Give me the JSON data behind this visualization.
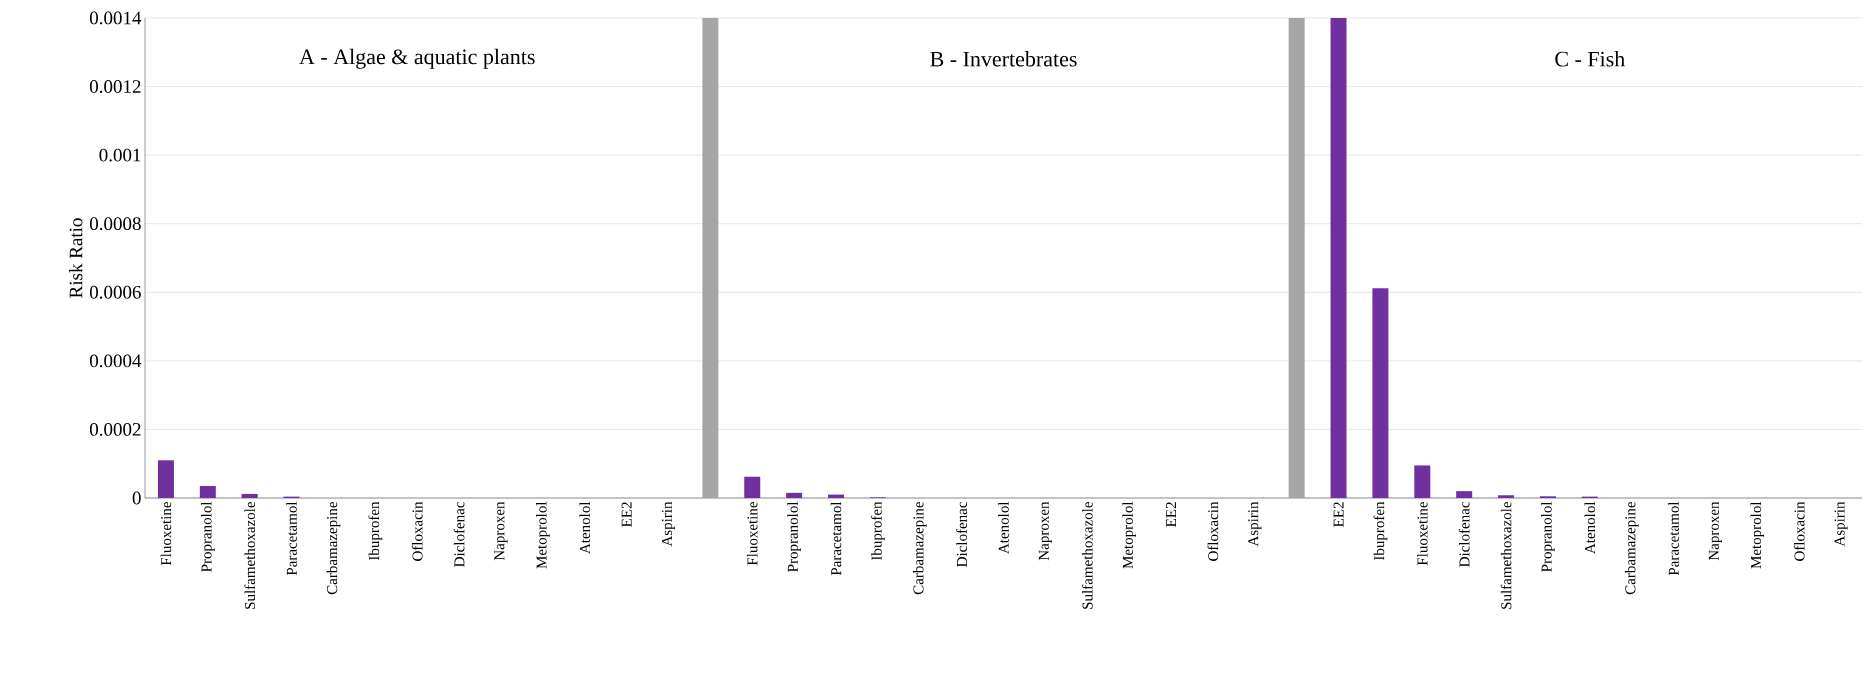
{
  "chart_data": {
    "type": "bar",
    "ylabel": "Risk Ratio",
    "categories": [
      "Fluoxetine",
      "Propranolol",
      "Sulfamethoxazole",
      "Paracetamol",
      "Carbamazepine",
      "Ibuprofen",
      "Ofloxacin",
      "Diclofenac",
      "Naproxen",
      "Metoprolol",
      "Atenolol",
      "EE2",
      "Aspirin",
      null,
      "Fluoxetine",
      "Propranolol",
      "Paracetamol",
      "Ibuprofen",
      "Carbamazepine",
      "Diclofenac",
      "Atenolol",
      "Naproxen",
      "Sulfamethoxazole",
      "Metoprolol",
      "EE2",
      "Ofloxacin",
      "Aspirin",
      null,
      "EE2",
      "Ibuprofen",
      "Fluoxetine",
      "Diclofenac",
      "Sulfamethoxazole",
      "Propranolol",
      "Atenolol",
      "Carbamazepine",
      "Paracetamol",
      "Naproxen",
      "Metoprolol",
      "Ofloxacin",
      "Aspirin"
    ],
    "series": [
      {
        "color": "#7030a0",
        "values": [
          0.00011,
          3.5e-05,
          1.2e-05,
          4e-06,
          0,
          0,
          0,
          0,
          0,
          0,
          0,
          0,
          0,
          null,
          6.2e-05,
          1.5e-05,
          1e-05,
          2e-06,
          0,
          0,
          0,
          0,
          0,
          0,
          0,
          0,
          0,
          null,
          0.0014,
          0.000612,
          9.5e-05,
          2e-05,
          8e-06,
          5e-06,
          4e-06,
          0,
          0,
          0,
          0,
          0,
          0
        ]
      },
      {
        "color": "#a6a6a6",
        "values": [
          null,
          null,
          null,
          null,
          null,
          null,
          null,
          null,
          null,
          null,
          null,
          null,
          null,
          0.0014,
          null,
          null,
          null,
          null,
          null,
          null,
          null,
          null,
          null,
          null,
          null,
          null,
          null,
          0.0014,
          null,
          null,
          null,
          null,
          null,
          null,
          null,
          null,
          null,
          null,
          null,
          null,
          null
        ]
      }
    ],
    "ylim": [
      0,
      0.0014
    ],
    "yticks": [
      0,
      0.0002,
      0.0004,
      0.0006,
      0.0008,
      0.001,
      0.0012,
      0.0014
    ],
    "grid": "y",
    "annotations": [
      "A - Algae & aquatic plants",
      "B - Invertebrates",
      "C - Fish"
    ]
  }
}
